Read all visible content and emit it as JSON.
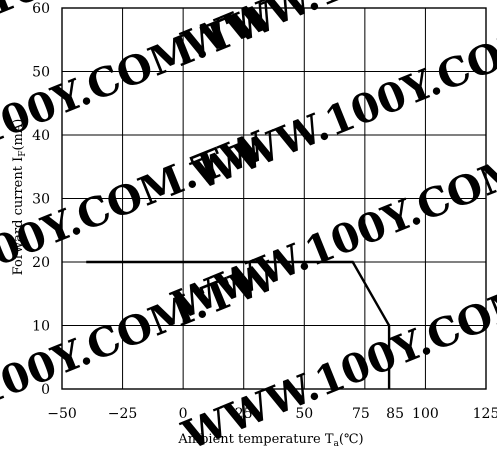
{
  "chart_data": {
    "type": "line",
    "watermark": "WWW.100Y.COM.TW",
    "xlabel": "Ambient temperature T",
    "xlabel_sub": "a",
    "xlabel_unit": "(℃)",
    "ylabel": "Forward current I",
    "ylabel_sub": "F",
    "ylabel_unit": "(mA)",
    "xlim": [
      -50,
      125
    ],
    "ylim": [
      0,
      60
    ],
    "x_ticks": [
      -50,
      -25,
      0,
      25,
      50,
      75,
      85,
      100,
      125
    ],
    "x_tick_labels": [
      "−50",
      "−25",
      "0",
      "25",
      "50",
      "75",
      "85",
      "100",
      "125"
    ],
    "x_gridlines": [
      -50,
      -25,
      0,
      25,
      50,
      75,
      100,
      125
    ],
    "y_ticks": [
      0,
      10,
      20,
      30,
      40,
      50,
      60
    ],
    "y_tick_labels": [
      "0",
      "10",
      "20",
      "30",
      "40",
      "50",
      "60"
    ],
    "grid": true,
    "series": [
      {
        "x": [
          -40,
          70,
          85,
          85
        ],
        "y": [
          20,
          20,
          10,
          0
        ]
      }
    ],
    "colors": {
      "grid": "#000000",
      "line": "#000000",
      "watermark": "#e6e6e6"
    }
  }
}
